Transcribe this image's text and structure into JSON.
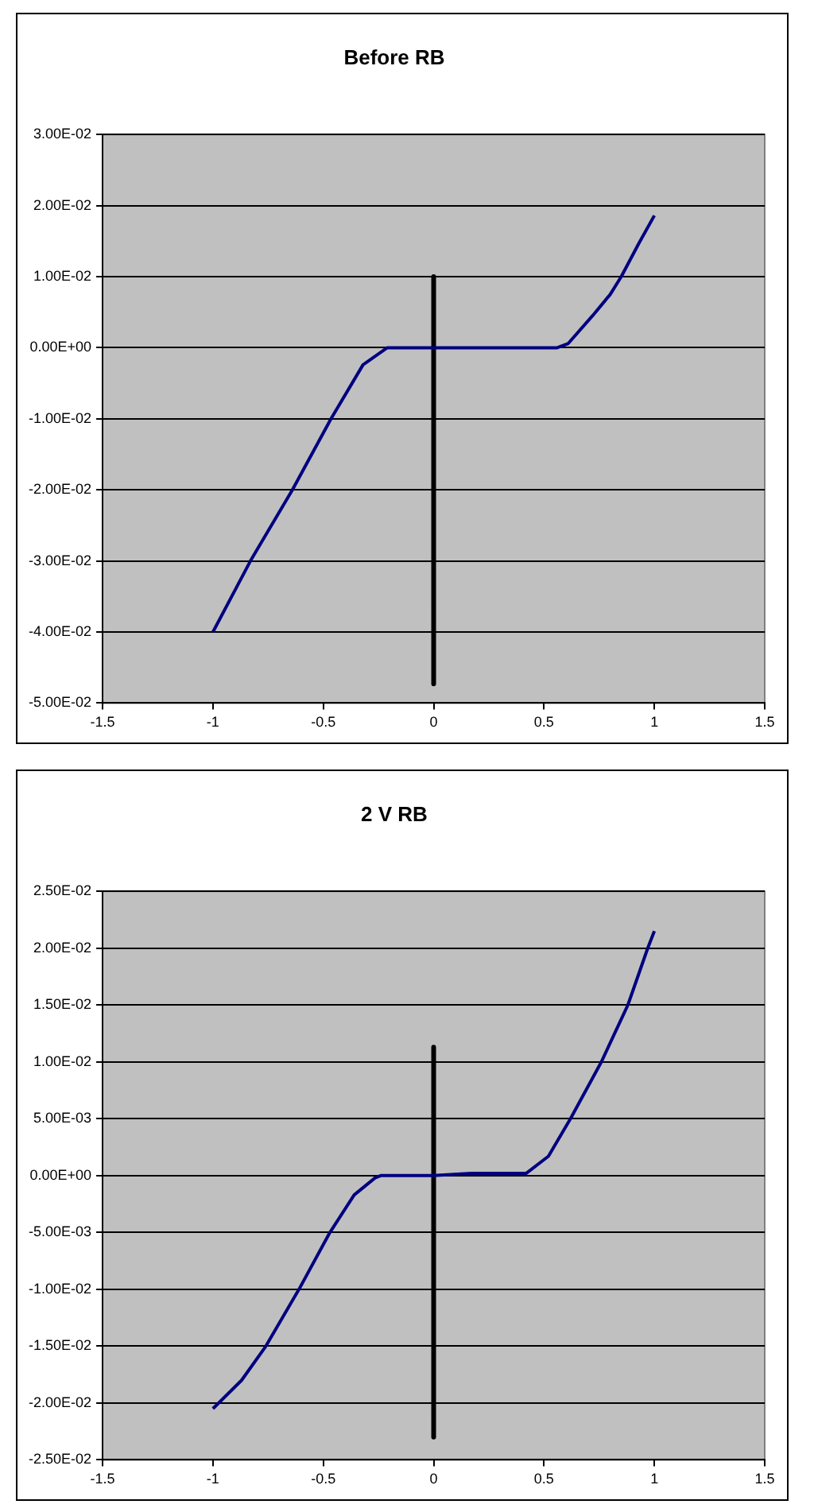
{
  "chart_data": [
    {
      "type": "line",
      "title": "Before RB",
      "xlim": [
        -1.5,
        1.5
      ],
      "xticks": [
        -1.5,
        -1,
        -0.5,
        0,
        0.5,
        1,
        1.5
      ],
      "ylim": [
        -0.05,
        0.03
      ],
      "yticks": [
        {
          "value": -0.05,
          "label": "-5.00E-02"
        },
        {
          "value": -0.04,
          "label": "-4.00E-02"
        },
        {
          "value": -0.03,
          "label": "-3.00E-02"
        },
        {
          "value": -0.02,
          "label": "-2.00E-02"
        },
        {
          "value": -0.01,
          "label": "-1.00E-02"
        },
        {
          "value": 0,
          "label": "0.00E+00"
        },
        {
          "value": 0.01,
          "label": "1.00E-02"
        },
        {
          "value": 0.02,
          "label": "2.00E-02"
        },
        {
          "value": 0.03,
          "label": "3.00E-02"
        }
      ],
      "grid": "y",
      "legend": false,
      "marker": "none",
      "series": [
        {
          "color": "#000080",
          "x": [
            -1,
            -0.83,
            -0.64,
            -0.465,
            -0.32,
            -0.21,
            0,
            0.3,
            0.56,
            0.61,
            0.72,
            0.8,
            0.85,
            0.93,
            1
          ],
          "values": [
            -0.04,
            -0.03,
            -0.02,
            -0.01,
            -0.0024,
            0,
            0,
            0,
            0,
            0.0006,
            0.0045,
            0.0075,
            0.01,
            0.0147,
            0.0186
          ]
        },
        {
          "color": "#000000",
          "x": [
            0,
            0
          ],
          "values": [
            0.01,
            -0.0473
          ]
        }
      ]
    },
    {
      "type": "line",
      "title": "2 V RB",
      "xlim": [
        -1.5,
        1.5
      ],
      "xticks": [
        -1.5,
        -1,
        -0.5,
        0,
        0.5,
        1,
        1.5
      ],
      "ylim": [
        -0.025,
        0.025
      ],
      "yticks": [
        {
          "value": -0.025,
          "label": "-2.50E-02"
        },
        {
          "value": -0.02,
          "label": "-2.00E-02"
        },
        {
          "value": -0.015,
          "label": "-1.50E-02"
        },
        {
          "value": -0.01,
          "label": "-1.00E-02"
        },
        {
          "value": -0.005,
          "label": "-5.00E-03"
        },
        {
          "value": 0,
          "label": "0.00E+00"
        },
        {
          "value": 0.005,
          "label": "5.00E-03"
        },
        {
          "value": 0.01,
          "label": "1.00E-02"
        },
        {
          "value": 0.015,
          "label": "1.50E-02"
        },
        {
          "value": 0.02,
          "label": "2.00E-02"
        },
        {
          "value": 0.025,
          "label": "2.50E-02"
        }
      ],
      "grid": "y",
      "legend": false,
      "marker": "none",
      "series": [
        {
          "color": "#000080",
          "x": [
            -1,
            -0.87,
            -0.76,
            -0.61,
            -0.47,
            -0.36,
            -0.265,
            -0.24,
            0,
            0.17,
            0.42,
            0.52,
            0.62,
            0.76,
            0.88,
            0.97,
            1
          ],
          "values": [
            -0.0205,
            -0.018,
            -0.015,
            -0.01,
            -0.005,
            -0.0017,
            -0.0002,
            0,
            0,
            0.0002,
            0.0002,
            0.0017,
            0.005,
            0.01,
            0.015,
            0.02,
            0.0215
          ]
        },
        {
          "color": "#000000",
          "x": [
            0,
            0
          ],
          "values": [
            0.0113,
            -0.023
          ]
        }
      ]
    }
  ]
}
